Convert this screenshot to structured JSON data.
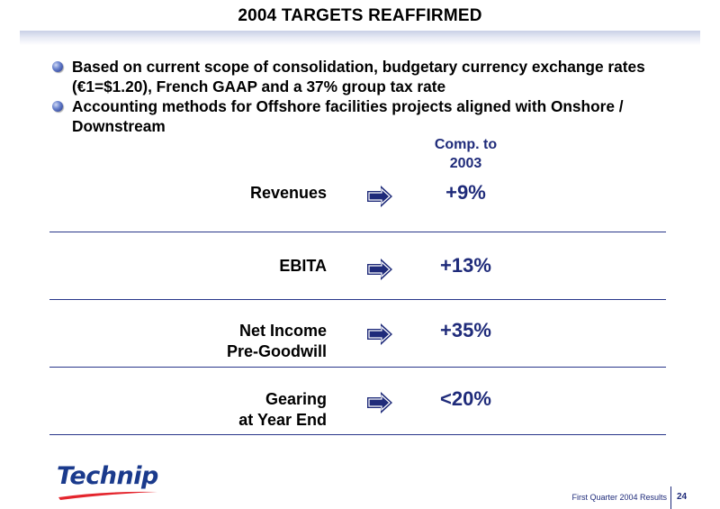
{
  "slide": {
    "title": "2004 TARGETS REAFFIRMED",
    "bullets": [
      "Based on current scope of consolidation, budgetary currency exchange rates (€1=$1.20), French GAAP and a 37% group tax rate",
      "Accounting methods for Offshore facilities projects aligned with Onshore / Downstream"
    ],
    "comparison_header": [
      "Comp. to",
      "2003"
    ],
    "targets": [
      {
        "label": [
          "Revenues"
        ],
        "value": "+9%"
      },
      {
        "label": [
          "EBITA"
        ],
        "value": "+13%"
      },
      {
        "label": [
          "Net Income",
          "Pre-Goodwill"
        ],
        "value": "+35%"
      },
      {
        "label": [
          "Gearing",
          "at Year End"
        ],
        "value": "<20%"
      }
    ],
    "arrow_icon": "right-arrow-icon",
    "accent_color": "#1f2b7a"
  },
  "footer": {
    "logo_text": "Technip",
    "caption": "First Quarter 2004 Results",
    "page_number": "24"
  }
}
